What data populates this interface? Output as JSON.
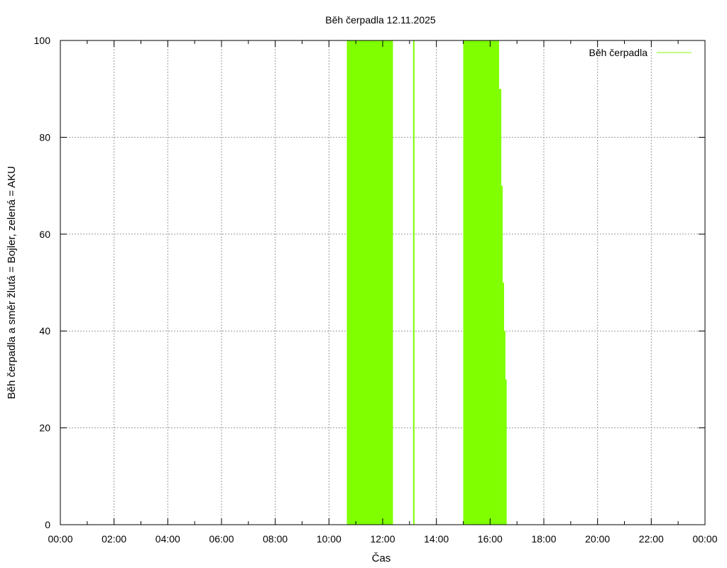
{
  "chart_data": {
    "type": "area",
    "title": "Běh čerpadla 12.11.2025",
    "xlabel": "Čas",
    "ylabel": "Běh čerpadla a směr žlutá = Bojler, zelená = AKU",
    "xlim_hours": [
      0,
      24
    ],
    "ylim": [
      0,
      100
    ],
    "x_tick_labels": [
      "00:00",
      "02:00",
      "04:00",
      "06:00",
      "08:00",
      "10:00",
      "12:00",
      "14:00",
      "16:00",
      "18:00",
      "20:00",
      "22:00",
      "00:00"
    ],
    "y_tick_labels": [
      "0",
      "20",
      "40",
      "60",
      "80",
      "100"
    ],
    "grid": true,
    "legend_position": "top-right",
    "series": [
      {
        "name": "Běh čerpadla",
        "color": "#7fff00",
        "segments": [
          {
            "start": "10:40",
            "end": "12:23",
            "value": 100
          },
          {
            "start": "13:08",
            "end": "13:10",
            "value": 100
          },
          {
            "start": "15:00",
            "end": "16:20",
            "value": 100
          },
          {
            "start": "16:20",
            "end": "16:25",
            "value": 90
          },
          {
            "start": "16:25",
            "end": "16:28",
            "value": 70
          },
          {
            "start": "16:28",
            "end": "16:31",
            "value": 50
          },
          {
            "start": "16:31",
            "end": "16:33",
            "value": 40
          },
          {
            "start": "16:33",
            "end": "16:37",
            "value": 30
          }
        ]
      }
    ]
  }
}
